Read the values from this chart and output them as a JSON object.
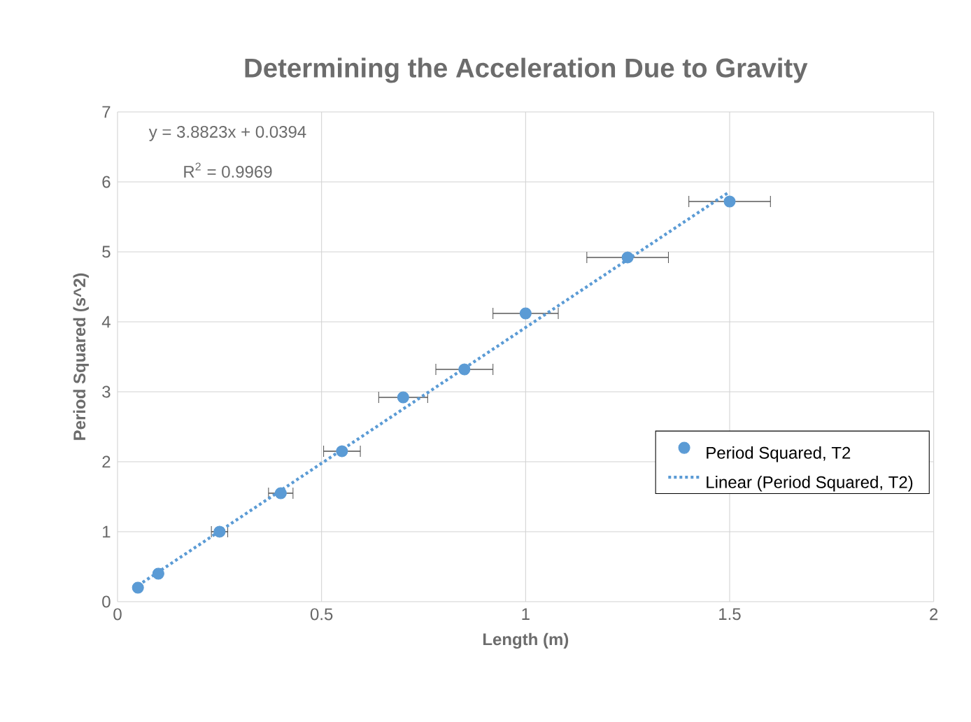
{
  "chart_data": {
    "type": "scatter",
    "title": "Determining the Acceleration Due to Gravity",
    "xlabel": "Length (m)",
    "ylabel": "Period Squared (s^2)",
    "x": [
      0.05,
      0.1,
      0.25,
      0.4,
      0.55,
      0.7,
      0.85,
      1.0,
      1.25,
      1.5
    ],
    "series": [
      {
        "name": "Period Squared, T2",
        "color": "#5b9bd5",
        "marker": "circle",
        "values": [
          0.2,
          0.4,
          1.0,
          1.55,
          2.15,
          2.92,
          3.32,
          4.12,
          4.92,
          5.72
        ],
        "xerrors": [
          null,
          null,
          0.02,
          0.03,
          0.045,
          0.06,
          0.07,
          0.08,
          0.1,
          0.1
        ]
      },
      {
        "name": "Linear (Period Squared, T2)",
        "color": "#5b9bd5",
        "type": "line",
        "line_style": "dotted",
        "marker": "none",
        "x": [
          0.05,
          1.5
        ],
        "values": [
          0.23,
          5.86
        ]
      }
    ],
    "annotations": [
      "y = 3.8823x + 0.0394",
      "R$^{2}$ = 0.9969"
    ],
    "xlim": [
      0,
      2
    ],
    "ylim": [
      0,
      7
    ],
    "xticks": [
      0,
      0.5,
      1,
      1.5,
      2
    ],
    "yticks": [
      0,
      1,
      2,
      3,
      4,
      5,
      6,
      7
    ],
    "grid": true,
    "legend": "right"
  }
}
